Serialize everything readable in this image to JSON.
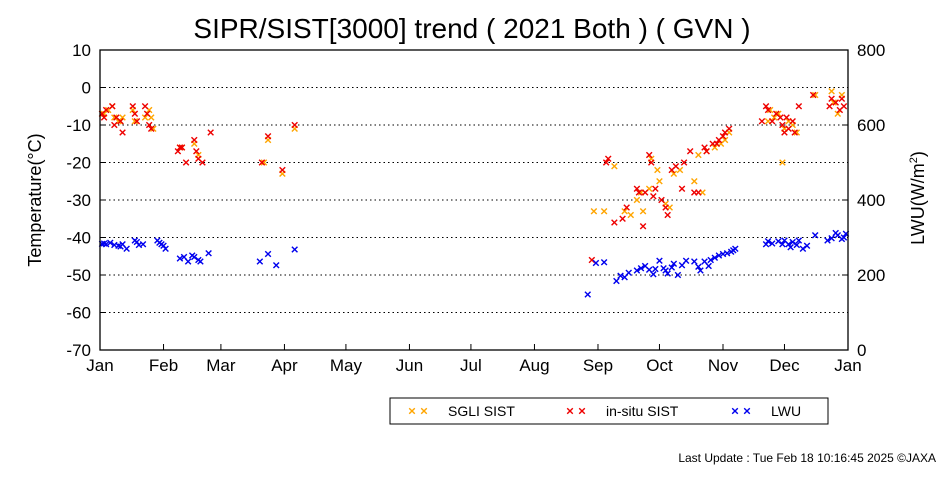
{
  "chart_data": {
    "type": "scatter",
    "title": "SIPR/SIST[3000] trend ( 2021 Both ) ( GVN )",
    "ylabel": "Temperature(°C)",
    "y2label_main": "LWU(W/m",
    "y2label_sup": "2",
    "y2label_end": ")",
    "ylim": [
      -70,
      10
    ],
    "y2lim": [
      0,
      800
    ],
    "xlim": [
      0,
      365
    ],
    "yticks": [
      "10",
      "0",
      "-10",
      "-20",
      "-30",
      "-40",
      "-50",
      "-60",
      "-70"
    ],
    "y2ticks": [
      "800",
      "600",
      "400",
      "200",
      "0"
    ],
    "xticks": [
      {
        "label": "Jan",
        "day": 0
      },
      {
        "label": "Feb",
        "day": 31
      },
      {
        "label": "Mar",
        "day": 59
      },
      {
        "label": "Apr",
        "day": 90
      },
      {
        "label": "May",
        "day": 120
      },
      {
        "label": "Jun",
        "day": 151
      },
      {
        "label": "Jul",
        "day": 181
      },
      {
        "label": "Aug",
        "day": 212
      },
      {
        "label": "Sep",
        "day": 243
      },
      {
        "label": "Oct",
        "day": 273
      },
      {
        "label": "Nov",
        "day": 304
      },
      {
        "label": "Dec",
        "day": 334
      },
      {
        "label": "Jan",
        "day": 365
      }
    ],
    "grid": "horizontal-dotted",
    "legend_position": "bottom-right",
    "series": [
      {
        "name": "SGLI SIST",
        "color": "#FFA500",
        "axis": "left",
        "points": [
          [
            1,
            -7
          ],
          [
            2,
            -7
          ],
          [
            4,
            -6
          ],
          [
            6,
            -5
          ],
          [
            7,
            -8
          ],
          [
            9,
            -9
          ],
          [
            10,
            -9
          ],
          [
            11,
            -8
          ],
          [
            16,
            -6
          ],
          [
            17,
            -9
          ],
          [
            22,
            -8
          ],
          [
            24,
            -6
          ],
          [
            25,
            -8
          ],
          [
            26,
            -11
          ],
          [
            39,
            -16
          ],
          [
            40,
            -16
          ],
          [
            46,
            -15
          ],
          [
            48,
            -18
          ],
          [
            80,
            -20
          ],
          [
            82,
            -14
          ],
          [
            89,
            -23
          ],
          [
            95,
            -11
          ],
          [
            241,
            -33
          ],
          [
            246,
            -33
          ],
          [
            251,
            -21
          ],
          [
            256,
            -33
          ],
          [
            259,
            -34
          ],
          [
            262,
            -30
          ],
          [
            264,
            -28
          ],
          [
            265,
            -33
          ],
          [
            268,
            -27
          ],
          [
            269,
            -19
          ],
          [
            272,
            -22
          ],
          [
            273,
            -25
          ],
          [
            276,
            -31
          ],
          [
            278,
            -32
          ],
          [
            280,
            -23
          ],
          [
            283,
            -22
          ],
          [
            290,
            -25
          ],
          [
            292,
            -18
          ],
          [
            294,
            -28
          ],
          [
            296,
            -17
          ],
          [
            300,
            -16
          ],
          [
            303,
            -15
          ],
          [
            305,
            -14
          ],
          [
            307,
            -12
          ],
          [
            326,
            -9
          ],
          [
            327,
            -6
          ],
          [
            329,
            -8
          ],
          [
            331,
            -7
          ],
          [
            333,
            -20
          ],
          [
            334,
            -11
          ],
          [
            336,
            -9
          ],
          [
            338,
            -10
          ],
          [
            340,
            -12
          ],
          [
            349,
            -2
          ],
          [
            357,
            -1
          ],
          [
            358,
            -4
          ],
          [
            360,
            -7
          ],
          [
            362,
            -2
          ]
        ]
      },
      {
        "name": "in-situ SIST",
        "color": "#EE0000",
        "axis": "left",
        "points": [
          [
            1,
            -7
          ],
          [
            2,
            -8
          ],
          [
            3,
            -6
          ],
          [
            6,
            -5
          ],
          [
            7,
            -10
          ],
          [
            8,
            -8
          ],
          [
            10,
            -9
          ],
          [
            11,
            -12
          ],
          [
            16,
            -5
          ],
          [
            17,
            -7
          ],
          [
            18,
            -9
          ],
          [
            22,
            -5
          ],
          [
            23,
            -7
          ],
          [
            24,
            -10
          ],
          [
            25,
            -11
          ],
          [
            38,
            -17
          ],
          [
            39,
            -16
          ],
          [
            40,
            -16
          ],
          [
            42,
            -20
          ],
          [
            46,
            -14
          ],
          [
            47,
            -17
          ],
          [
            48,
            -19
          ],
          [
            50,
            -20
          ],
          [
            54,
            -12
          ],
          [
            79,
            -20
          ],
          [
            82,
            -13
          ],
          [
            89,
            -22
          ],
          [
            95,
            -10
          ],
          [
            240,
            -46
          ],
          [
            247,
            -20
          ],
          [
            248,
            -19
          ],
          [
            251,
            -36
          ],
          [
            255,
            -35
          ],
          [
            257,
            -32
          ],
          [
            262,
            -27
          ],
          [
            263,
            -28
          ],
          [
            265,
            -37
          ],
          [
            266,
            -28
          ],
          [
            268,
            -18
          ],
          [
            269,
            -20
          ],
          [
            270,
            -29
          ],
          [
            271,
            -27
          ],
          [
            274,
            -30
          ],
          [
            276,
            -32
          ],
          [
            277,
            -34
          ],
          [
            279,
            -22
          ],
          [
            281,
            -21
          ],
          [
            284,
            -27
          ],
          [
            285,
            -20
          ],
          [
            288,
            -17
          ],
          [
            290,
            -28
          ],
          [
            292,
            -28
          ],
          [
            295,
            -16
          ],
          [
            296,
            -17
          ],
          [
            299,
            -15
          ],
          [
            301,
            -15
          ],
          [
            302,
            -14
          ],
          [
            304,
            -13
          ],
          [
            305,
            -12
          ],
          [
            307,
            -11
          ],
          [
            323,
            -9
          ],
          [
            325,
            -5
          ],
          [
            326,
            -6
          ],
          [
            328,
            -9
          ],
          [
            330,
            -7
          ],
          [
            332,
            -8
          ],
          [
            333,
            -10
          ],
          [
            334,
            -12
          ],
          [
            335,
            -8
          ],
          [
            336,
            -11
          ],
          [
            338,
            -9
          ],
          [
            339,
            -12
          ],
          [
            341,
            -5
          ],
          [
            348,
            -2
          ],
          [
            356,
            -5
          ],
          [
            357,
            -3
          ],
          [
            359,
            -4
          ],
          [
            361,
            -6
          ],
          [
            362,
            -3
          ],
          [
            363,
            -5
          ]
        ]
      },
      {
        "name": "LWU",
        "color": "#0000EE",
        "axis": "right",
        "points": [
          [
            1,
            283
          ],
          [
            2,
            284
          ],
          [
            3,
            282
          ],
          [
            5,
            286
          ],
          [
            7,
            280
          ],
          [
            9,
            278
          ],
          [
            10,
            276
          ],
          [
            11,
            282
          ],
          [
            13,
            270
          ],
          [
            17,
            292
          ],
          [
            18,
            288
          ],
          [
            19,
            280
          ],
          [
            21,
            282
          ],
          [
            28,
            292
          ],
          [
            29,
            286
          ],
          [
            30,
            282
          ],
          [
            31,
            278
          ],
          [
            32,
            270
          ],
          [
            39,
            244
          ],
          [
            41,
            248
          ],
          [
            43,
            236
          ],
          [
            45,
            252
          ],
          [
            46,
            248
          ],
          [
            48,
            240
          ],
          [
            49,
            236
          ],
          [
            53,
            258
          ],
          [
            78,
            236
          ],
          [
            82,
            256
          ],
          [
            86,
            226
          ],
          [
            95,
            268
          ],
          [
            238,
            148
          ],
          [
            242,
            232
          ],
          [
            246,
            234
          ],
          [
            252,
            184
          ],
          [
            254,
            198
          ],
          [
            256,
            194
          ],
          [
            258,
            206
          ],
          [
            262,
            212
          ],
          [
            264,
            218
          ],
          [
            266,
            224
          ],
          [
            268,
            214
          ],
          [
            270,
            202
          ],
          [
            271,
            216
          ],
          [
            273,
            238
          ],
          [
            275,
            218
          ],
          [
            276,
            212
          ],
          [
            277,
            204
          ],
          [
            279,
            220
          ],
          [
            280,
            230
          ],
          [
            282,
            200
          ],
          [
            284,
            226
          ],
          [
            286,
            238
          ],
          [
            290,
            236
          ],
          [
            292,
            222
          ],
          [
            293,
            212
          ],
          [
            295,
            236
          ],
          [
            297,
            224
          ],
          [
            298,
            240
          ],
          [
            300,
            246
          ],
          [
            302,
            252
          ],
          [
            304,
            256
          ],
          [
            306,
            258
          ],
          [
            308,
            262
          ],
          [
            309,
            266
          ],
          [
            310,
            270
          ],
          [
            325,
            282
          ],
          [
            326,
            290
          ],
          [
            328,
            284
          ],
          [
            331,
            290
          ],
          [
            333,
            282
          ],
          [
            334,
            292
          ],
          [
            336,
            282
          ],
          [
            337,
            274
          ],
          [
            338,
            288
          ],
          [
            340,
            280
          ],
          [
            341,
            292
          ],
          [
            343,
            270
          ],
          [
            345,
            278
          ],
          [
            349,
            306
          ],
          [
            355,
            292
          ],
          [
            357,
            298
          ],
          [
            359,
            312
          ],
          [
            360,
            306
          ],
          [
            362,
            296
          ],
          [
            363,
            300
          ],
          [
            364,
            310
          ]
        ]
      }
    ],
    "footer": "Last Update : Tue Feb 18 10:16:45 2025  ©JAXA"
  }
}
